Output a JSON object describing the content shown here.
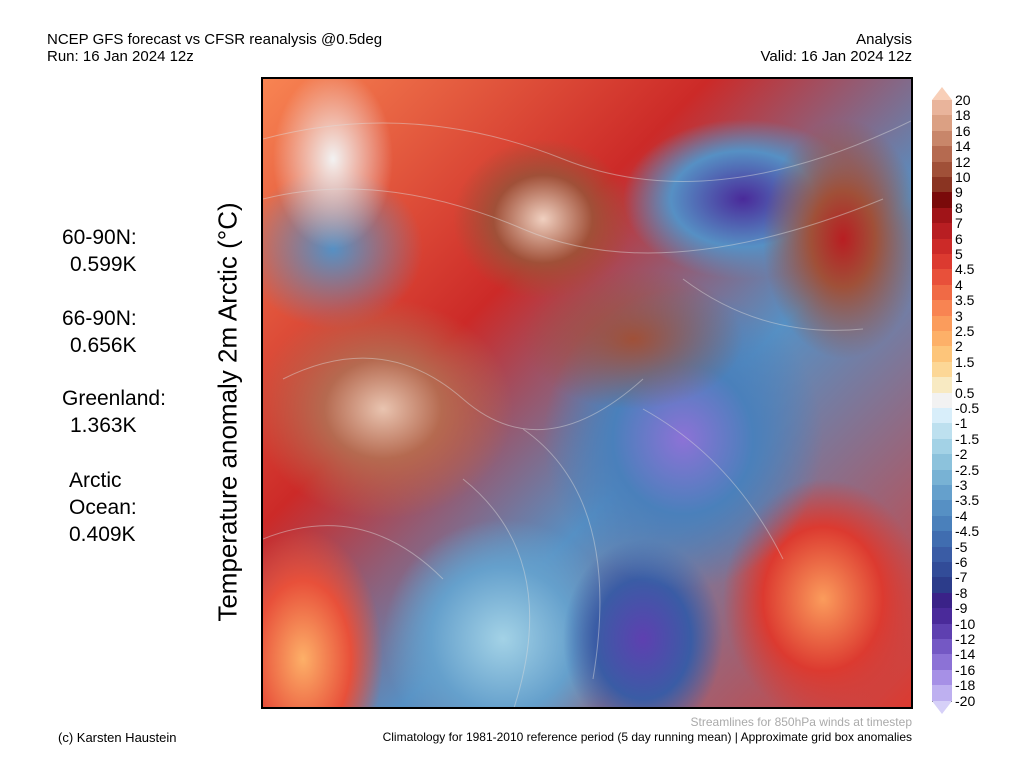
{
  "header": {
    "title_left": "NCEP GFS forecast vs CFSR reanalysis @0.5deg",
    "run": "Run: 16 Jan 2024 12z",
    "title_right": "Analysis",
    "valid": "Valid: 16 Jan 2024 12z"
  },
  "ylabel": "Temperature anomaly 2m Arctic (°C)",
  "stats": [
    {
      "label": "60-90N:",
      "value": "0.599K"
    },
    {
      "label": "66-90N:",
      "value": "0.656K"
    },
    {
      "label": "Greenland:",
      "value": "1.363K"
    },
    {
      "label": "Arctic",
      "label2": "Ocean:",
      "value": "0.409K"
    }
  ],
  "colorbar": {
    "labels": [
      "20",
      "18",
      "16",
      "14",
      "12",
      "10",
      "9",
      "8",
      "7",
      "6",
      "5",
      "4.5",
      "4",
      "3.5",
      "3",
      "2.5",
      "2",
      "1.5",
      "1",
      "0.5",
      "-0.5",
      "-1",
      "-1.5",
      "-2",
      "-2.5",
      "-3",
      "-3.5",
      "-4",
      "-4.5",
      "-5",
      "-6",
      "-7",
      "-8",
      "-9",
      "-10",
      "-12",
      "-14",
      "-16",
      "-18",
      "-20"
    ],
    "colors": [
      "#e9b49b",
      "#dba083",
      "#c8866a",
      "#b56a50",
      "#a05038",
      "#8a3422",
      "#7a0a0a",
      "#a01418",
      "#b81e22",
      "#cc2a28",
      "#dc3a30",
      "#e8503a",
      "#f06a45",
      "#f88452",
      "#fb9c5c",
      "#fdb068",
      "#fdc57a",
      "#fcd796",
      "#f8eac2",
      "#f2f2f2",
      "#d8eefa",
      "#bde0ef",
      "#a3d2e6",
      "#8cc2dc",
      "#78b2d4",
      "#65a0cc",
      "#5690c4",
      "#4a80bb",
      "#406db0",
      "#3a5ca5",
      "#324c98",
      "#2c3c8a",
      "#3a2288",
      "#4a2a9a",
      "#5e40b0",
      "#7458c4",
      "#8c72d6",
      "#a690e6",
      "#beb0f0"
    ],
    "over_color": "#f8cfb8",
    "under_color": "#d6d0f8"
  },
  "footer": {
    "streamlines": "Streamlines for 850hPa winds at timestep",
    "credit": "(c) Karsten Haustein",
    "climatology": "Climatology for 1981-2010 reference period (5 day running mean) | Approximate grid box anomalies"
  }
}
